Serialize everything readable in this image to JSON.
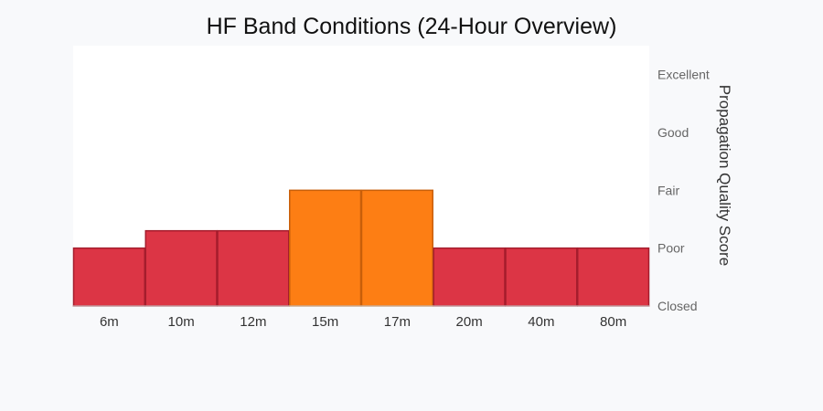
{
  "chart_data": {
    "type": "bar",
    "title": "HF Band Conditions (24-Hour Overview)",
    "xlabel": "",
    "ylabel": "Propagation Quality Score",
    "categories": [
      "6m",
      "10m",
      "12m",
      "15m",
      "17m",
      "20m",
      "40m",
      "80m"
    ],
    "values": [
      1,
      1.3,
      1.3,
      2,
      2,
      1,
      1,
      1
    ],
    "ylim": [
      0,
      4.5
    ],
    "y_ticks": [
      {
        "value": 0,
        "label": "Closed"
      },
      {
        "value": 1,
        "label": "Poor"
      },
      {
        "value": 2,
        "label": "Fair"
      },
      {
        "value": 3,
        "label": "Good"
      },
      {
        "value": 4,
        "label": "Excellent"
      }
    ],
    "y_axis_side": "right",
    "grid": false,
    "legend": "none",
    "bar_colors": [
      "#dc3545",
      "#dc3545",
      "#dc3545",
      "#fd7e14",
      "#fd7e14",
      "#dc3545",
      "#dc3545",
      "#dc3545"
    ],
    "bar_edge_colors": [
      "#a51d2d",
      "#a51d2d",
      "#a51d2d",
      "#c85f0a",
      "#c85f0a",
      "#a51d2d",
      "#a51d2d",
      "#a51d2d"
    ],
    "plot_background": "#ffffff",
    "page_background": "#f8f9fb"
  }
}
